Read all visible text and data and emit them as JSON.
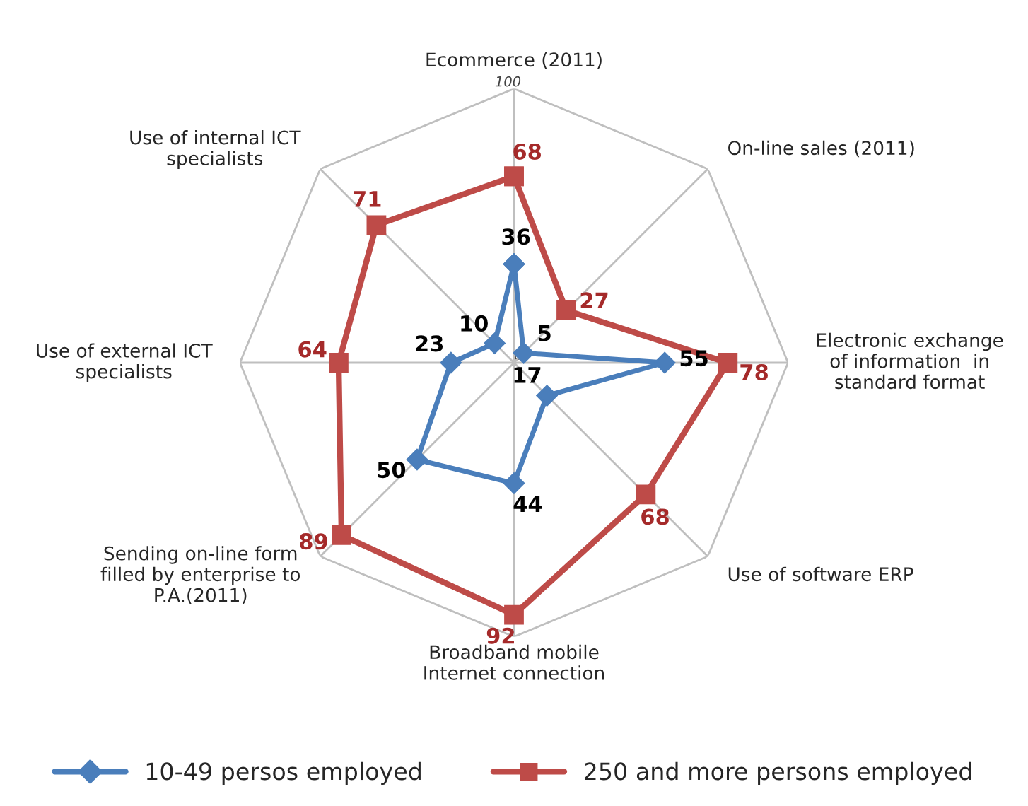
{
  "chart_data": {
    "type": "radar",
    "categories": [
      "Ecommerce (2011)",
      "On-line sales (2011)",
      "Electronic exchange\nof information  in\nstandard format",
      "Use of software ERP",
      "Broadband mobile\nInternet connection",
      "Sending on-line form\nfilled by enterprise to\nP.A.(2011)",
      "Use of external ICT\nspecialists",
      "Use of internal ICT\nspecialists"
    ],
    "series": [
      {
        "name": "10-49 persos employed",
        "color": "#4a7ebb",
        "marker": "diamond",
        "values": [
          36,
          5,
          55,
          17,
          44,
          50,
          23,
          10
        ]
      },
      {
        "name": "250 and more persons employed",
        "color": "#be4b48",
        "marker": "square",
        "values": [
          68,
          27,
          78,
          68,
          92,
          89,
          64,
          71
        ]
      }
    ],
    "ylim": [
      0,
      100
    ],
    "yticks": [
      0,
      100
    ],
    "grid": true,
    "data_labels": true,
    "legend": "bottom"
  }
}
